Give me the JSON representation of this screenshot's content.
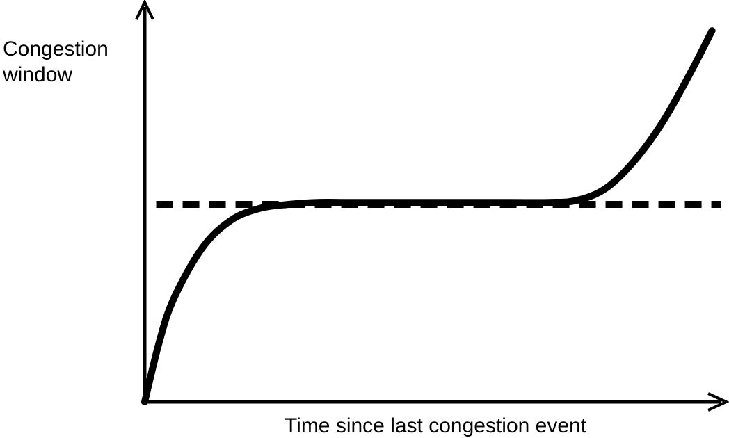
{
  "chart_data": {
    "type": "line",
    "title": "",
    "xlabel": "Time since last congestion event",
    "ylabel_lines": [
      "Congestion",
      "window"
    ],
    "ticks_shown": false,
    "grid": false,
    "legend": "none",
    "xlim": [
      0,
      10
    ],
    "ylim": [
      0,
      10
    ],
    "series": [
      {
        "style": "solid",
        "color": "#000000",
        "x": [
          0.0,
          0.25,
          0.5,
          1.0,
          1.5,
          2.0,
          2.5,
          3.0,
          3.5,
          4.0,
          5.0,
          6.0,
          7.0,
          7.5,
          8.0,
          8.5,
          9.0,
          9.5,
          9.85
        ],
        "y": [
          0.0,
          1.5,
          2.6,
          3.9,
          4.6,
          4.9,
          5.0,
          5.05,
          5.05,
          5.05,
          5.05,
          5.05,
          5.05,
          5.1,
          5.4,
          6.1,
          7.1,
          8.4,
          9.4
        ]
      },
      {
        "style": "dashed",
        "color": "#000000",
        "x": [
          0.2,
          10.0
        ],
        "y": [
          5.0,
          5.0
        ]
      }
    ]
  }
}
